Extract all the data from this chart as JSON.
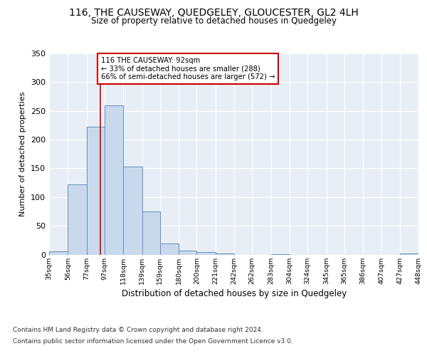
{
  "title1": "116, THE CAUSEWAY, QUEDGELEY, GLOUCESTER, GL2 4LH",
  "title2": "Size of property relative to detached houses in Quedgeley",
  "xlabel": "Distribution of detached houses by size in Quedgeley",
  "ylabel": "Number of detached properties",
  "bin_edges": [
    35,
    56,
    77,
    97,
    118,
    139,
    159,
    180,
    200,
    221,
    242,
    262,
    283,
    304,
    324,
    345,
    365,
    386,
    407,
    427,
    448
  ],
  "bin_heights": [
    5,
    122,
    222,
    260,
    153,
    75,
    19,
    7,
    4,
    2,
    0,
    0,
    1,
    0,
    0,
    0,
    0,
    0,
    0,
    2
  ],
  "bar_color": "#c9d9ec",
  "bar_edge_color": "#6090c0",
  "vline_x": 92,
  "vline_color": "#cc0000",
  "annotation_text": "116 THE CAUSEWAY: 92sqm\n← 33% of detached houses are smaller (288)\n66% of semi-detached houses are larger (572) →",
  "annotation_box_color": "#ffffff",
  "annotation_box_edge": "#cc0000",
  "ylim": [
    0,
    350
  ],
  "yticks": [
    0,
    50,
    100,
    150,
    200,
    250,
    300,
    350
  ],
  "bg_color": "#e8eef5",
  "footer_line1": "Contains HM Land Registry data © Crown copyright and database right 2024.",
  "footer_line2": "Contains public sector information licensed under the Open Government Licence v3.0.",
  "tick_labels": [
    "35sqm",
    "56sqm",
    "77sqm",
    "97sqm",
    "118sqm",
    "139sqm",
    "159sqm",
    "180sqm",
    "200sqm",
    "221sqm",
    "242sqm",
    "262sqm",
    "283sqm",
    "304sqm",
    "324sqm",
    "345sqm",
    "365sqm",
    "386sqm",
    "407sqm",
    "427sqm",
    "448sqm"
  ]
}
